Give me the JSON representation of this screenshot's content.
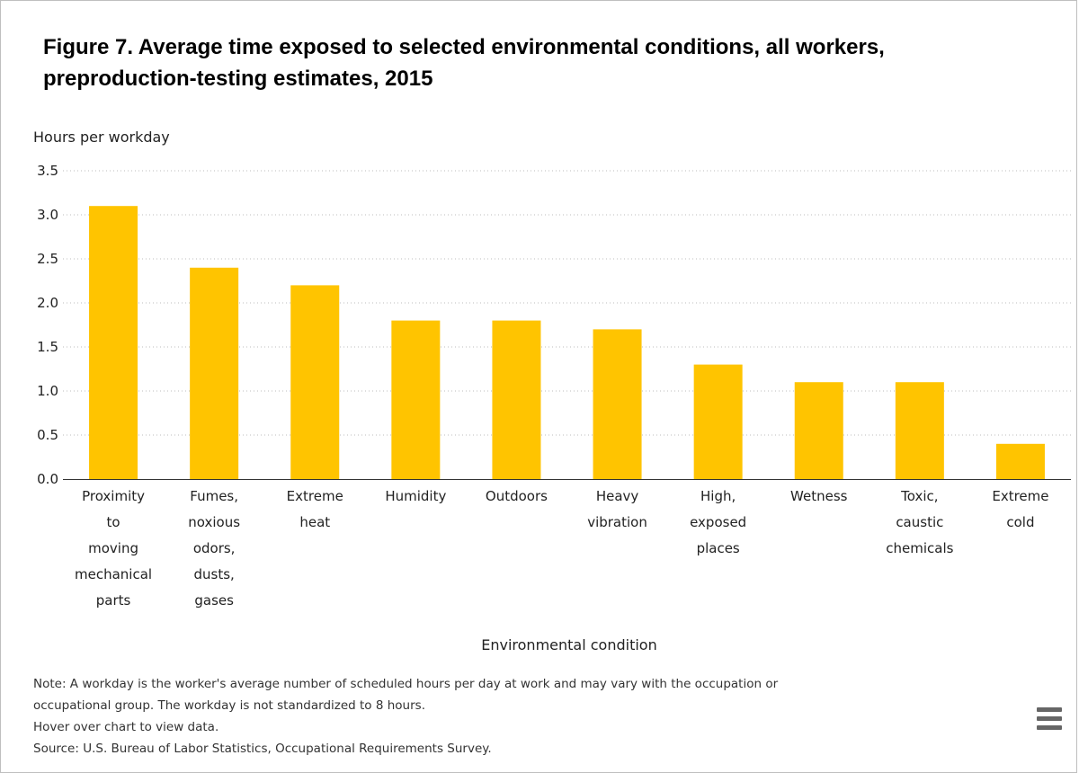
{
  "title": "Figure 7. Average time exposed to selected environmental conditions, all workers, preproduction-testing estimates, 2015",
  "notes": {
    "note_line1": "Note: A workday is the worker's average number of scheduled hours per day at work and may vary with the occupation or",
    "note_line2": "occupational group. The workday is not standardized to 8 hours.",
    "hover": "Hover over chart to view data.",
    "source": "Source: U.S. Bureau of Labor Statistics, Occupational Requirements Survey."
  },
  "menu": {
    "icon": "hamburger-menu-icon"
  },
  "colors": {
    "bar": "#FFC400",
    "grid": "#bdbdbd",
    "axis": "#333333"
  },
  "chart_data": {
    "type": "bar",
    "title": "Figure 7. Average time exposed to selected environmental conditions, all workers, preproduction-testing estimates, 2015",
    "xlabel": "Environmental condition",
    "ylabel": "Hours per workday",
    "ylim": [
      0,
      3.5
    ],
    "yticks": [
      "0.0",
      "0.5",
      "1.0",
      "1.5",
      "2.0",
      "2.5",
      "3.0",
      "3.5"
    ],
    "grid": true,
    "categories": [
      [
        "Proximity",
        "to",
        "moving",
        "mechanical",
        "parts"
      ],
      [
        "Fumes,",
        "noxious",
        "odors,",
        "dusts,",
        "gases"
      ],
      [
        "Extreme",
        "heat"
      ],
      [
        "Humidity"
      ],
      [
        "Outdoors"
      ],
      [
        "Heavy",
        "vibration"
      ],
      [
        "High,",
        "exposed",
        "places"
      ],
      [
        "Wetness"
      ],
      [
        "Toxic,",
        "caustic",
        "chemicals"
      ],
      [
        "Extreme",
        "cold"
      ]
    ],
    "values": [
      3.1,
      2.4,
      2.2,
      1.8,
      1.8,
      1.7,
      1.3,
      1.1,
      1.1,
      0.4
    ]
  }
}
